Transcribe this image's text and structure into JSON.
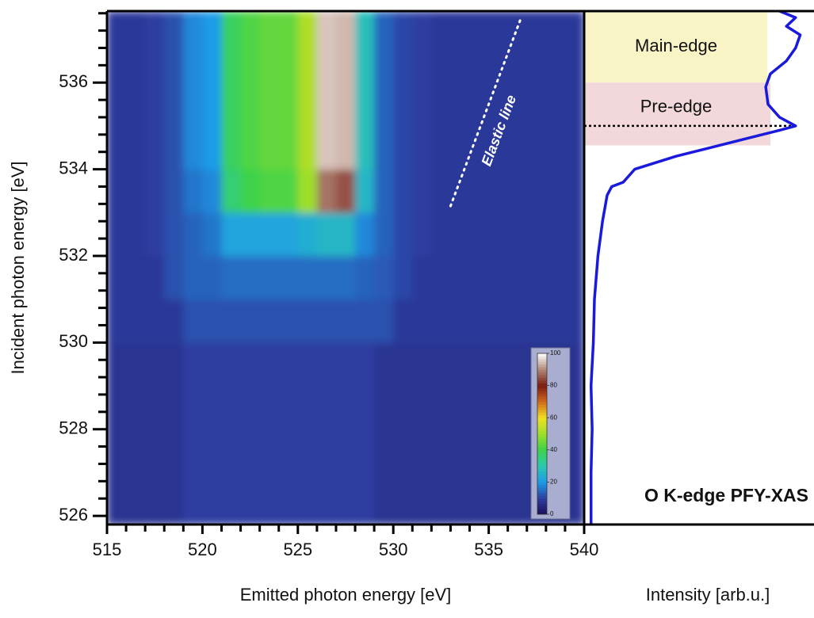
{
  "chart_data": {
    "type": "heatmap",
    "xlabel": "Emitted photon energy [eV]",
    "ylabel": "Incident photon energy [eV]",
    "xlim": [
      515,
      540
    ],
    "ylim": [
      525.8,
      537.65
    ],
    "xticks": [
      515,
      520,
      525,
      530,
      535,
      540
    ],
    "yticks": [
      526,
      528,
      530,
      532,
      534,
      536
    ],
    "x_minor_per_major": 5,
    "y_minor_per_major": 5,
    "colormap": [
      "#1a0f5a",
      "#2d3ea0",
      "#1e9be8",
      "#2ac8b0",
      "#3cd24a",
      "#9ede2a",
      "#f0e020",
      "#d06a1a",
      "#7a1a10",
      "#b08878",
      "#ffffff"
    ],
    "colorbar": {
      "lim": [
        0,
        100
      ],
      "ticks": [
        0,
        20,
        40,
        60,
        80,
        100
      ]
    },
    "heatmap": {
      "x_bins": [
        515,
        516,
        517,
        518,
        519,
        520,
        521,
        522,
        523,
        524,
        525,
        526,
        527,
        528,
        529,
        530,
        531,
        532,
        533,
        534,
        535,
        536,
        537,
        538,
        539,
        540
      ],
      "y_bins": [
        525.8,
        527,
        528,
        529,
        530,
        531,
        532,
        533,
        534,
        535,
        536,
        537,
        537.65
      ],
      "values": [
        [
          8,
          8,
          8,
          8,
          10,
          10,
          10,
          10,
          10,
          10,
          10,
          10,
          10,
          10,
          8,
          8,
          8,
          8,
          8,
          8,
          8,
          8,
          8,
          8,
          8
        ],
        [
          8,
          8,
          8,
          8,
          10,
          10,
          10,
          10,
          10,
          10,
          10,
          10,
          10,
          10,
          8,
          8,
          8,
          8,
          8,
          8,
          8,
          8,
          8,
          8,
          8
        ],
        [
          8,
          8,
          8,
          8,
          10,
          10,
          10,
          10,
          10,
          10,
          10,
          10,
          10,
          10,
          8,
          8,
          8,
          8,
          8,
          8,
          8,
          8,
          8,
          8,
          8
        ],
        [
          8,
          8,
          8,
          8,
          10,
          10,
          10,
          10,
          10,
          10,
          10,
          10,
          10,
          10,
          8,
          8,
          8,
          8,
          8,
          8,
          8,
          8,
          8,
          8,
          8
        ],
        [
          9,
          9,
          9,
          9,
          12,
          12,
          12,
          12,
          12,
          12,
          12,
          12,
          12,
          12,
          12,
          9,
          9,
          9,
          9,
          9,
          9,
          9,
          9,
          9,
          9
        ],
        [
          9,
          9,
          9,
          12,
          14,
          14,
          15,
          15,
          15,
          15,
          15,
          15,
          15,
          14,
          13,
          11,
          9,
          9,
          9,
          9,
          9,
          9,
          9,
          9,
          9
        ],
        [
          9,
          9,
          10,
          12,
          14,
          16,
          22,
          22,
          22,
          22,
          24,
          26,
          26,
          18,
          14,
          11,
          10,
          9,
          9,
          9,
          9,
          9,
          9,
          9,
          9
        ],
        [
          9,
          9,
          10,
          12,
          16,
          18,
          36,
          40,
          42,
          42,
          50,
          88,
          85,
          26,
          14,
          11,
          10,
          9,
          9,
          9,
          9,
          9,
          9,
          9,
          9
        ],
        [
          9,
          9,
          10,
          12,
          18,
          20,
          38,
          42,
          44,
          44,
          52,
          95,
          94,
          28,
          14,
          11,
          10,
          9,
          9,
          9,
          9,
          9,
          9,
          9,
          9
        ],
        [
          9,
          9,
          10,
          12,
          18,
          20,
          38,
          42,
          44,
          44,
          52,
          95,
          94,
          28,
          14,
          11,
          10,
          9,
          9,
          9,
          9,
          9,
          9,
          9,
          9
        ],
        [
          9,
          9,
          10,
          12,
          18,
          20,
          38,
          42,
          44,
          44,
          52,
          95,
          94,
          28,
          14,
          11,
          10,
          9,
          9,
          9,
          9,
          9,
          9,
          9,
          9
        ],
        [
          9,
          9,
          10,
          12,
          18,
          20,
          38,
          42,
          44,
          44,
          52,
          95,
          94,
          28,
          14,
          11,
          10,
          9,
          9,
          9,
          9,
          9,
          9,
          9,
          9
        ]
      ]
    },
    "elastic_line": {
      "label": "Elastic line",
      "x": [
        533.0,
        536.7
      ],
      "y": [
        533.15,
        537.5
      ]
    },
    "xas": {
      "xlabel": "Intensity [arb.u.]",
      "annotation": "O K-edge PFY-XAS",
      "color": "#1a1adc",
      "xlim": [
        0,
        1
      ],
      "y": [
        525.8,
        527,
        528,
        529,
        530,
        531,
        532,
        532.8,
        533.4,
        533.6,
        533.7,
        534,
        534.3,
        534.5,
        534.7,
        534.9,
        535,
        535.2,
        535.5,
        535.9,
        536.2,
        536.5,
        536.8,
        537.1,
        537.3,
        537.5,
        537.65
      ],
      "values": [
        0.03,
        0.03,
        0.035,
        0.03,
        0.04,
        0.045,
        0.06,
        0.08,
        0.1,
        0.12,
        0.17,
        0.22,
        0.4,
        0.55,
        0.7,
        0.85,
        0.92,
        0.85,
        0.8,
        0.79,
        0.81,
        0.88,
        0.92,
        0.94,
        0.88,
        0.92,
        0.85
      ],
      "bands": [
        {
          "label": "Main-edge",
          "y": [
            536,
            537.65
          ],
          "color": "#f8f4c6"
        },
        {
          "label": "Pre-edge",
          "y": [
            534.55,
            536
          ],
          "color": "#f2d8da"
        }
      ],
      "marker_y": 535
    }
  }
}
